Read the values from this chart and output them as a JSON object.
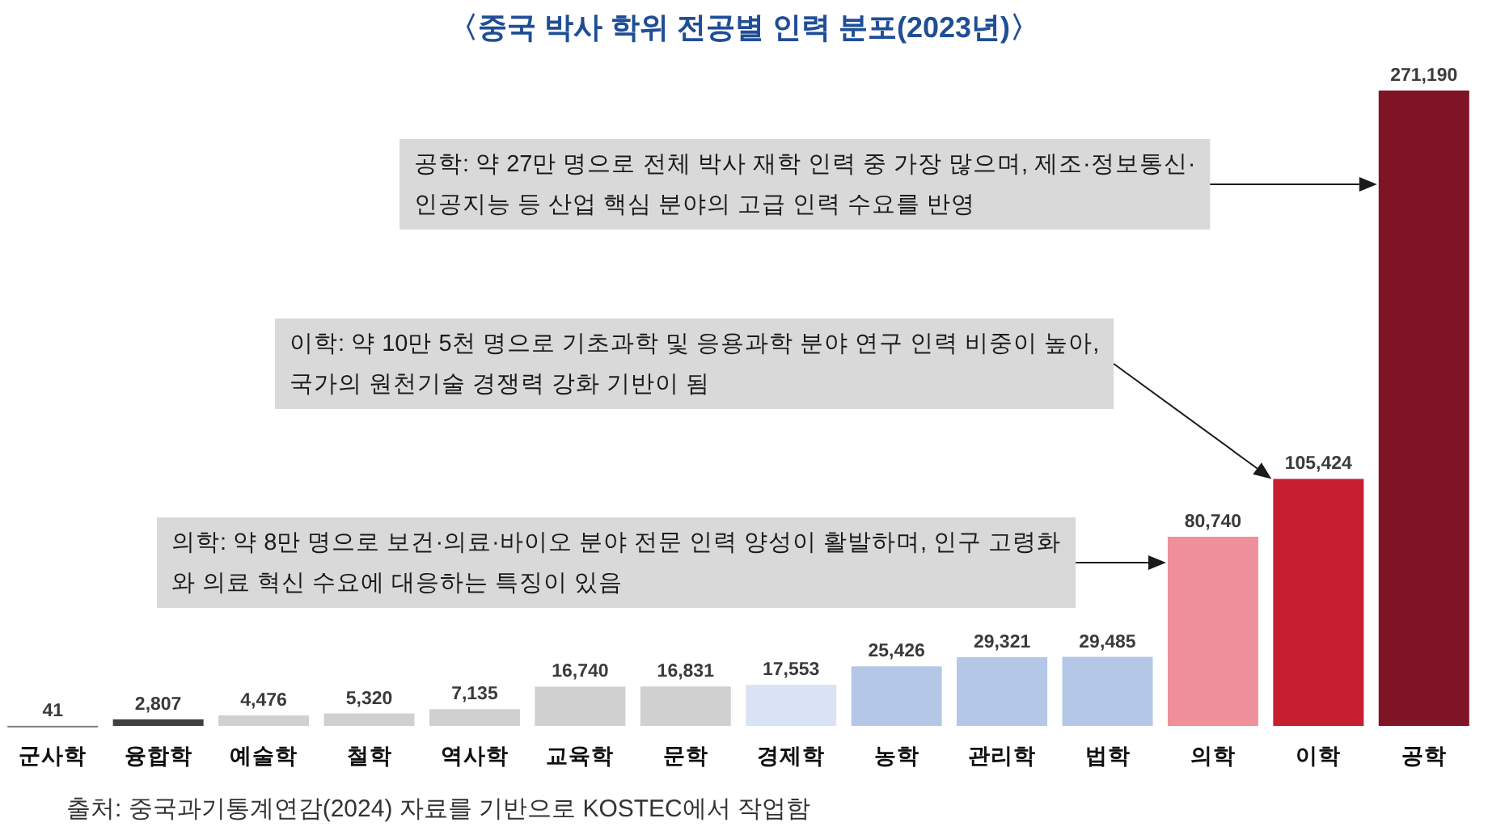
{
  "chart_data": {
    "type": "bar",
    "title": "〈중국 박사 학위 전공별 인력 분포(2023년)〉",
    "categories": [
      "군사학",
      "융합학",
      "예술학",
      "철학",
      "역사학",
      "교육학",
      "문학",
      "경제학",
      "농학",
      "관리학",
      "법학",
      "의학",
      "이학",
      "공학"
    ],
    "values": [
      41,
      2807,
      4476,
      5320,
      7135,
      16740,
      16831,
      17553,
      25426,
      29321,
      29485,
      80740,
      105424,
      271190
    ],
    "value_labels": [
      "41",
      "2,807",
      "4,476",
      "5,320",
      "7,135",
      "16,740",
      "16,831",
      "17,553",
      "25,426",
      "29,321",
      "29,485",
      "80,740",
      "105,424",
      "271,190"
    ],
    "colors": [
      "#7f7f7f",
      "#404040",
      "#d0d0d0",
      "#d0d0d0",
      "#d0d0d0",
      "#d0d0d0",
      "#d0d0d0",
      "#dae3f3",
      "#b4c7e7",
      "#b4c7e7",
      "#b4c7e7",
      "#ef8f9b",
      "#c71f30",
      "#7e1426"
    ],
    "annotations": [
      "공학: 약 27만 명으로 전체 박사 재학 인력 중 가장 많으며, 제조·정보통신·인공지능 등 산업 핵심 분야의 고급 인력 수요를 반영",
      "이학: 약 10만 5천 명으로 기초과학 및 응용과학 분야 연구 인력 비중이 높아, 국가의 원천기술 경쟁력 강화 기반이 됨",
      "의학: 약 8만 명으로 보건·의료·바이오 분야 전문 인력 양성이 활발하며, 인구 고령화와 의료 혁신 수요에 대응하는 특징이 있음",
      "출처: 중국과기통계연감(2024) 자료를 기반으로 KOSTEC에서 작업함"
    ]
  }
}
